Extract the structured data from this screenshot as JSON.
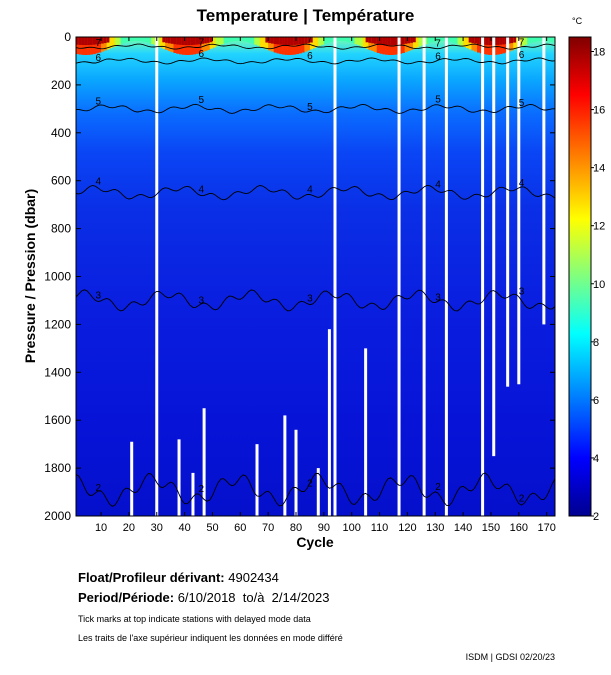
{
  "title": "Temperature | Température",
  "chart_data": {
    "type": "heatmap",
    "xlabel": "Cycle",
    "ylabel": "Pressure / Pression (dbar)",
    "x_ticks": [
      10,
      20,
      30,
      40,
      50,
      60,
      70,
      80,
      90,
      100,
      110,
      120,
      130,
      140,
      150,
      160,
      170
    ],
    "y_ticks": [
      0,
      200,
      400,
      600,
      800,
      1000,
      1200,
      1400,
      1600,
      1800,
      2000
    ],
    "xlim": [
      1,
      173
    ],
    "ylim": [
      2000,
      0
    ],
    "colorbar": {
      "unit": "°C",
      "range": [
        2,
        18.5
      ],
      "ticks": [
        2,
        4,
        6,
        8,
        10,
        12,
        14,
        16,
        18
      ],
      "colormap": "jet"
    },
    "contour_levels": [
      2,
      3,
      4,
      5,
      6,
      7
    ],
    "contours": [
      {
        "level": 7,
        "depth": 40
      },
      {
        "level": 6,
        "depth": 100
      },
      {
        "level": 5,
        "depth": 300
      },
      {
        "level": 4,
        "depth": 650
      },
      {
        "level": 3,
        "depth": 1100
      },
      {
        "level": 2,
        "depth": 1890
      }
    ],
    "missing_profiles": [
      {
        "cycle": 21,
        "from": 1690,
        "to": 2000
      },
      {
        "cycle": 30,
        "from": 0,
        "to": 2000
      },
      {
        "cycle": 38,
        "from": 1680,
        "to": 2000
      },
      {
        "cycle": 43,
        "from": 1820,
        "to": 2000
      },
      {
        "cycle": 47,
        "from": 1550,
        "to": 2000
      },
      {
        "cycle": 66,
        "from": 1700,
        "to": 2000
      },
      {
        "cycle": 76,
        "from": 1580,
        "to": 2000
      },
      {
        "cycle": 80,
        "from": 1640,
        "to": 2000
      },
      {
        "cycle": 88,
        "from": 1800,
        "to": 2000
      },
      {
        "cycle": 92,
        "from": 1220,
        "to": 2000
      },
      {
        "cycle": 94,
        "from": 0,
        "to": 2000
      },
      {
        "cycle": 105,
        "from": 1300,
        "to": 2000
      },
      {
        "cycle": 117,
        "from": 0,
        "to": 2000
      },
      {
        "cycle": 126,
        "from": 0,
        "to": 2000
      },
      {
        "cycle": 134,
        "from": 0,
        "to": 2000
      },
      {
        "cycle": 147,
        "from": 0,
        "to": 2000
      },
      {
        "cycle": 151,
        "from": 0,
        "to": 1750
      },
      {
        "cycle": 156,
        "from": 0,
        "to": 1460
      },
      {
        "cycle": 160,
        "from": 0,
        "to": 1450
      },
      {
        "cycle": 169,
        "from": 0,
        "to": 1200
      }
    ]
  },
  "info": {
    "float_label": "Float/Profileur dérivant:",
    "float_value": "4902434",
    "period_label": "Period/Période:",
    "period_value": "6/10/2018  to/à  2/14/2023",
    "note_en": "Tick marks at top indicate stations with delayed mode data",
    "note_fr": "Les traits de l'axe supérieur indiquent les données en mode différé",
    "credit": "ISDM | GDSI  02/20/23"
  }
}
